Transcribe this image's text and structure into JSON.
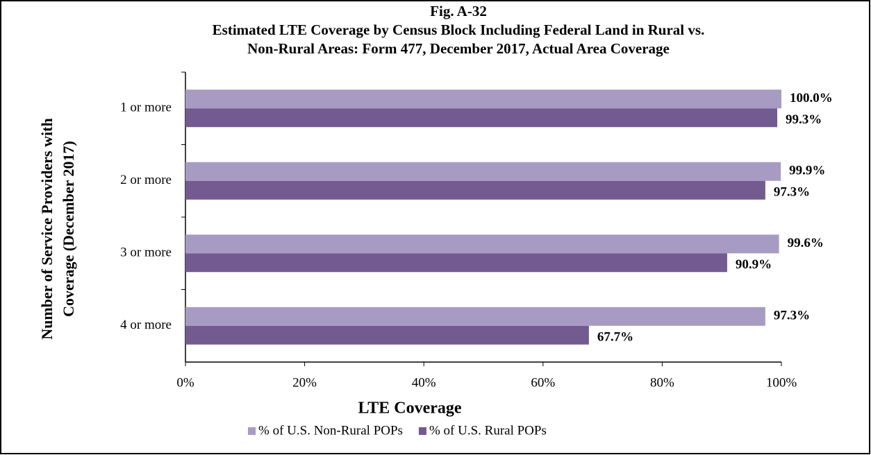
{
  "chart_data": {
    "type": "hbar",
    "title": "Fig. A-32",
    "subtitle": [
      "Estimated LTE Coverage by Census Block Including Federal Land in Rural vs.",
      "Non-Rural Areas:  Form 477, December 2017, Actual Area Coverage"
    ],
    "x_label": "LTE Coverage",
    "y_label": [
      "Number of Service Providers with",
      "Coverage (December 2017)"
    ],
    "categories": [
      "1 or more",
      "2 or more",
      "3 or more",
      "4 or more"
    ],
    "series": [
      {
        "name": "% of U.S. Non-Rural POPs",
        "color": "#a89bc3",
        "values": [
          100.0,
          99.9,
          99.6,
          97.3
        ],
        "value_labels": [
          "100.0%",
          "99.9%",
          "99.6%",
          "97.3%"
        ]
      },
      {
        "name": "% of U.S. Rural POPs",
        "color": "#735a90",
        "values": [
          99.3,
          97.3,
          90.9,
          67.7
        ],
        "value_labels": [
          "99.3%",
          "97.3%",
          "90.9%",
          "67.7%"
        ]
      }
    ],
    "xlim": [
      0,
      100
    ],
    "xticks": [
      {
        "value": 0,
        "label": "0%"
      },
      {
        "value": 20,
        "label": "20%"
      },
      {
        "value": 40,
        "label": "40%"
      },
      {
        "value": 60,
        "label": "60%"
      },
      {
        "value": 80,
        "label": "80%"
      },
      {
        "value": 100,
        "label": "100%"
      }
    ],
    "legend": "bottom"
  }
}
